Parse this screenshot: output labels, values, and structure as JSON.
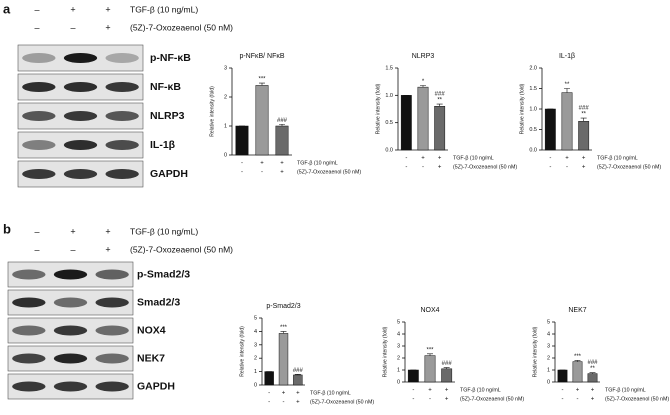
{
  "panels": [
    {
      "label": "a",
      "conditions": [
        {
          "label": "TGF-β (10 ng/mL)",
          "signs": [
            "–",
            "+",
            "+"
          ]
        },
        {
          "label": "(5Z)-7-Oxozeaenol (50 nM)",
          "signs": [
            "–",
            "–",
            "+"
          ]
        }
      ],
      "bands": [
        "p-NF-κB",
        "NF-κB",
        "NLRP3",
        "IL-1β",
        "GAPDH"
      ]
    },
    {
      "label": "b",
      "conditions": [
        {
          "label": "TGF-β (10 ng/mL)",
          "signs": [
            "–",
            "+",
            "+"
          ]
        },
        {
          "label": "(5Z)-7-Oxozeaenol (50 nM)",
          "signs": [
            "–",
            "–",
            "+"
          ]
        }
      ],
      "bands": [
        "p-Smad2/3",
        "Smad2/3",
        "NOX4",
        "NEK7",
        "GAPDH"
      ]
    }
  ],
  "chart_data": [
    {
      "type": "bar",
      "title": "p-NFκB/ NFκB",
      "y_label": "Relative intensity (fold)",
      "values": [
        1,
        2.4,
        1.0
      ],
      "errors": [
        0,
        0.08,
        0.06
      ],
      "annotations": [
        [],
        [
          "***"
        ],
        [
          "###"
        ]
      ],
      "colors": [
        "#111111",
        "#9a9a9a",
        "#6a6a6a"
      ],
      "ylim": [
        0,
        3
      ],
      "yticks": [
        0,
        1,
        2,
        3
      ],
      "conditions": [
        {
          "label": "TGF-β (10 ng/mL",
          "signs": [
            "-",
            "+",
            "+"
          ]
        },
        {
          "label": "(5Z)-7-Oxozeaenol (50 nM)",
          "signs": [
            "-",
            "-",
            "+"
          ]
        }
      ]
    },
    {
      "type": "bar",
      "title": "NLRP3",
      "y_label": "Relative intensity (fold)",
      "values": [
        1,
        1.15,
        0.8
      ],
      "errors": [
        0,
        0.03,
        0.04
      ],
      "annotations": [
        [],
        [
          "*"
        ],
        [
          "###",
          "**"
        ]
      ],
      "colors": [
        "#111111",
        "#9a9a9a",
        "#6a6a6a"
      ],
      "ylim": [
        0,
        1.5
      ],
      "yticks": [
        {
          "value": 0,
          "label": "0.0"
        },
        {
          "value": 0.5,
          "label": "0.5"
        },
        {
          "value": 1,
          "label": "1.0"
        },
        {
          "value": 1.5,
          "label": "1.5"
        }
      ],
      "conditions": [
        {
          "label": "TGF-β (10 ng/mL",
          "signs": [
            "-",
            "+",
            "+"
          ]
        },
        {
          "label": "(5Z)-7-Oxozeaenol (50 nM)",
          "signs": [
            "-",
            "-",
            "+"
          ]
        }
      ]
    },
    {
      "type": "bar",
      "title": "IL-1β",
      "y_label": "Relative intensity (fold)",
      "values": [
        1,
        1.4,
        0.7
      ],
      "errors": [
        0,
        0.1,
        0.08
      ],
      "annotations": [
        [],
        [
          "**"
        ],
        [
          "###",
          "**"
        ]
      ],
      "colors": [
        "#111111",
        "#9a9a9a",
        "#6a6a6a"
      ],
      "ylim": [
        0,
        2
      ],
      "yticks": [
        {
          "value": 0,
          "label": "0.0"
        },
        {
          "value": 0.5,
          "label": "0.5"
        },
        {
          "value": 1,
          "label": "1.0"
        },
        {
          "value": 1.5,
          "label": "1.5"
        },
        {
          "value": 2,
          "label": "2.0"
        }
      ],
      "conditions": [
        {
          "label": "TGF-β (10 ng/mL",
          "signs": [
            "-",
            "+",
            "+"
          ]
        },
        {
          "label": "(5Z)-7-Oxozeaenol (50 nM)",
          "signs": [
            "-",
            "-",
            "+"
          ]
        }
      ]
    },
    {
      "type": "bar",
      "title": "p-Smad2/3",
      "y_label": "Relative intensity (fold)",
      "values": [
        1,
        3.85,
        0.75
      ],
      "errors": [
        0,
        0.15,
        0.05
      ],
      "annotations": [
        [],
        [
          "***"
        ],
        [
          "###"
        ]
      ],
      "colors": [
        "#111111",
        "#9a9a9a",
        "#6a6a6a"
      ],
      "ylim": [
        0,
        5
      ],
      "yticks": [
        0,
        1,
        2,
        3,
        4,
        5
      ],
      "conditions": [
        {
          "label": "TGF-β (10 ng/mL",
          "signs": [
            "-",
            "+",
            "+"
          ]
        },
        {
          "label": "(5Z)-7-Oxozeaenol (50 nM)",
          "signs": [
            "-",
            "-",
            "+"
          ]
        }
      ]
    },
    {
      "type": "bar",
      "title": "NOX4",
      "y_label": "Relative intensity (fold)",
      "values": [
        1,
        2.2,
        1.1
      ],
      "errors": [
        0,
        0.15,
        0.1
      ],
      "annotations": [
        [],
        [
          "***"
        ],
        [
          "###"
        ]
      ],
      "colors": [
        "#111111",
        "#9a9a9a",
        "#6a6a6a"
      ],
      "ylim": [
        0,
        5
      ],
      "yticks": [
        0,
        1,
        2,
        3,
        4,
        5
      ],
      "conditions": [
        {
          "label": "TGF-β (10 ng/mL",
          "signs": [
            "-",
            "+",
            "+"
          ]
        },
        {
          "label": "(5Z)-7-Oxozeaenol (50 nM)",
          "signs": [
            "-",
            "-",
            "+"
          ]
        }
      ]
    },
    {
      "type": "bar",
      "title": "NEK7",
      "y_label": "Relative intensity (fold)",
      "values": [
        1,
        1.7,
        0.7
      ],
      "errors": [
        0,
        0.1,
        0.08
      ],
      "annotations": [
        [],
        [
          "***"
        ],
        [
          "###",
          "**"
        ]
      ],
      "colors": [
        "#111111",
        "#9a9a9a",
        "#6a6a6a"
      ],
      "ylim": [
        0,
        5
      ],
      "yticks": [
        0,
        1,
        2,
        3,
        4,
        5
      ],
      "conditions": [
        {
          "label": "TGF-β (10 ng/mL",
          "signs": [
            "-",
            "+",
            "+"
          ]
        },
        {
          "label": "(5Z)-7-Oxozeaenol (50 nM)",
          "signs": [
            "-",
            "-",
            "+"
          ]
        }
      ]
    }
  ]
}
